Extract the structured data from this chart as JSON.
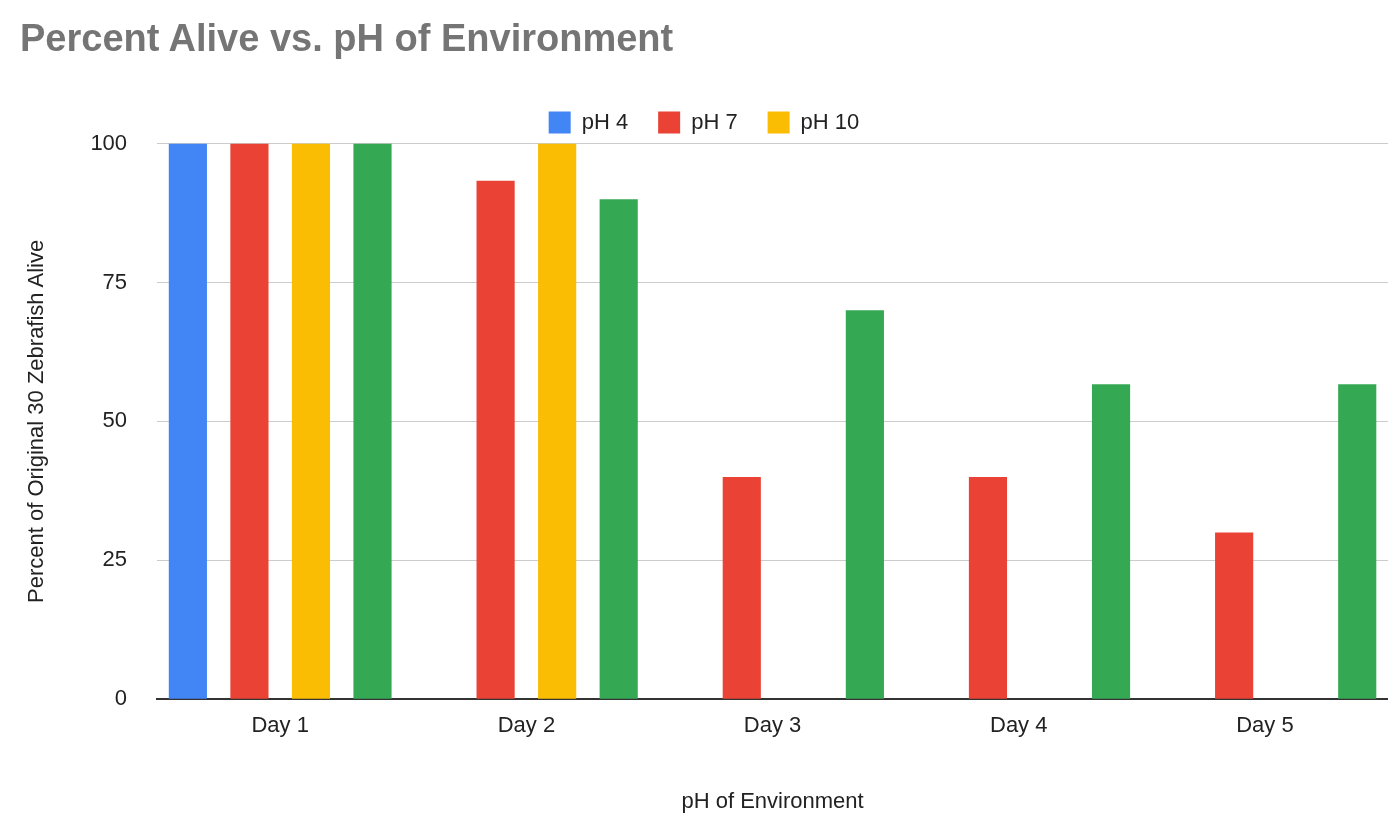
{
  "chart_data": {
    "type": "bar",
    "title": "Percent Alive vs. pH of Environment",
    "xlabel": "pH of Environment",
    "ylabel": "Percent of Original 30 Zebrafish Alive",
    "categories": [
      "Day 1",
      "Day 2",
      "Day 3",
      "Day 4",
      "Day 5"
    ],
    "series": [
      {
        "name": "pH 4",
        "color": "#4285f4",
        "values": [
          100,
          0,
          0,
          0,
          0
        ]
      },
      {
        "name": "pH 7",
        "color": "#ea4335",
        "values": [
          100,
          93.3,
          40,
          40,
          30
        ]
      },
      {
        "name": "pH 10",
        "color": "#fbbc04",
        "values": [
          100,
          100,
          0,
          0,
          0
        ]
      },
      {
        "color": "#34a853",
        "values": [
          100,
          90,
          70,
          56.7,
          56.7
        ]
      }
    ],
    "ylim": [
      0,
      100
    ],
    "yticks": [
      0,
      25,
      50,
      75,
      100
    ],
    "grid": "y",
    "legend": "top"
  }
}
